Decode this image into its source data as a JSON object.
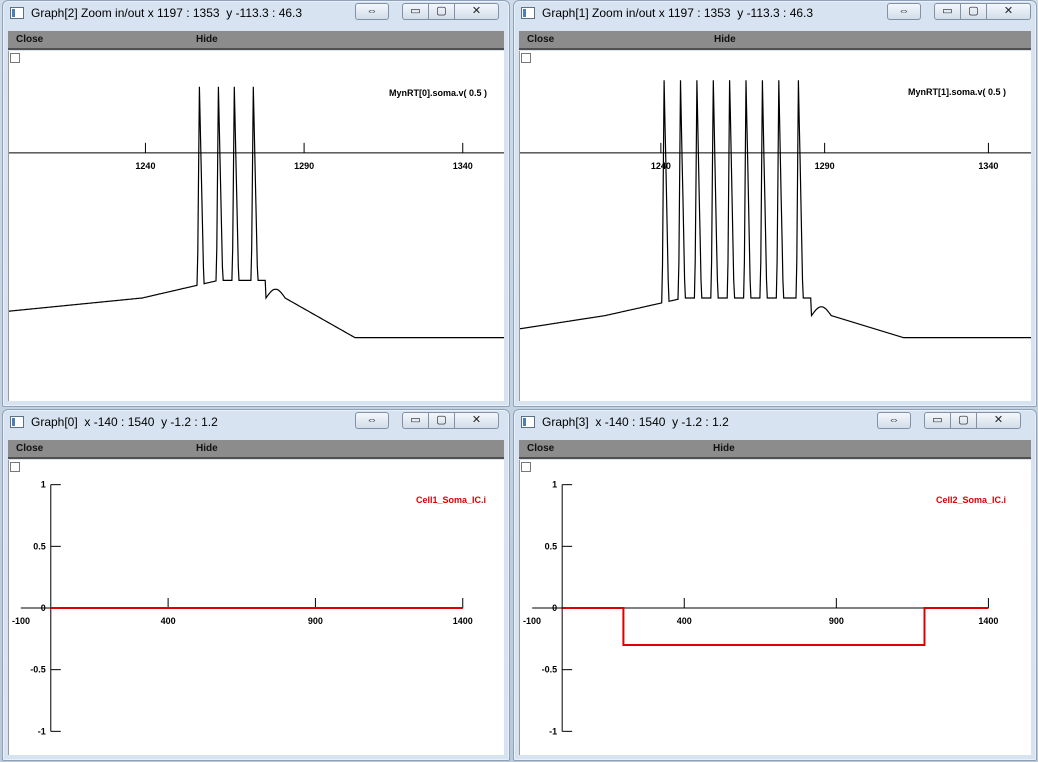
{
  "windows": [
    {
      "id": "graph2",
      "title": "Graph[2] Zoom in/out x 1197 : 1353  y -113.3 : 46.3",
      "menu": {
        "close": "Close",
        "hide": "Hide"
      },
      "buttons": {
        "arrows": "⇔",
        "min": "▭",
        "max": "▢",
        "close": "✕"
      }
    },
    {
      "id": "graph1",
      "title": "Graph[1] Zoom in/out x 1197 : 1353  y -113.3 : 46.3",
      "menu": {
        "close": "Close",
        "hide": "Hide"
      },
      "buttons": {
        "arrows": "⇔",
        "min": "▭",
        "max": "▢",
        "close": "✕"
      }
    },
    {
      "id": "graph0",
      "title": "Graph[0]  x -140 : 1540  y -1.2 : 1.2",
      "menu": {
        "close": "Close",
        "hide": "Hide"
      },
      "buttons": {
        "arrows": "⇔",
        "min": "▭",
        "max": "▢",
        "close": "✕"
      }
    },
    {
      "id": "graph3",
      "title": "Graph[3]  x -140 : 1540  y -1.2 : 1.2",
      "menu": {
        "close": "Close",
        "hide": "Hide"
      },
      "buttons": {
        "arrows": "⇔",
        "min": "▭",
        "max": "▢",
        "close": "✕"
      }
    }
  ],
  "chart_data": [
    {
      "type": "line",
      "window": "graph2",
      "series": [
        {
          "name": "MynRT[0].soma.v( 0.5 )",
          "color": "#000000"
        }
      ],
      "xlim": [
        1197,
        1353
      ],
      "ylim": [
        -113.3,
        46.3
      ],
      "x_ticks": [
        "1240",
        "1290",
        "1340"
      ],
      "x_tick_values": [
        1240,
        1290,
        1340
      ],
      "spike_times": [
        1257,
        1263,
        1268,
        1274
      ],
      "baseline_pre": -72,
      "baseline_post": -84,
      "spike_peak": 30
    },
    {
      "type": "line",
      "window": "graph1",
      "series": [
        {
          "name": "MynRT[1].soma.v( 0.5 )",
          "color": "#000000"
        }
      ],
      "xlim": [
        1197,
        1353
      ],
      "ylim": [
        -113.3,
        46.3
      ],
      "x_ticks": [
        "1240",
        "1290",
        "1340"
      ],
      "x_tick_values": [
        1240,
        1290,
        1340
      ],
      "spike_times": [
        1241,
        1246,
        1251,
        1256,
        1261,
        1266,
        1271,
        1276,
        1282
      ],
      "baseline_pre": -80,
      "baseline_post": -84,
      "spike_peak": 33
    },
    {
      "type": "line",
      "window": "graph0",
      "series": [
        {
          "name": "Cell1_Soma_IC.i",
          "color": "#dd0000"
        }
      ],
      "xlim": [
        -140,
        1540
      ],
      "ylim": [
        -1.2,
        1.2
      ],
      "x_ticks": [
        "-100",
        "400",
        "900",
        "1400"
      ],
      "x_tick_values": [
        -100,
        400,
        900,
        1400
      ],
      "y_ticks": [
        "1",
        "0.5",
        "0",
        "-0.5",
        "-1"
      ],
      "y_tick_values": [
        1,
        0.5,
        0,
        -0.5,
        -1
      ],
      "x": [
        0,
        1400
      ],
      "y": [
        0,
        0
      ]
    },
    {
      "type": "line",
      "window": "graph3",
      "series": [
        {
          "name": "Cell2_Soma_IC.i",
          "color": "#dd0000"
        }
      ],
      "xlim": [
        -140,
        1540
      ],
      "ylim": [
        -1.2,
        1.2
      ],
      "x_ticks": [
        "-100",
        "400",
        "900",
        "1400"
      ],
      "x_tick_values": [
        -100,
        400,
        900,
        1400
      ],
      "y_ticks": [
        "1",
        "0.5",
        "0",
        "-0.5",
        "-1"
      ],
      "y_tick_values": [
        1,
        0.5,
        0,
        -0.5,
        -1
      ],
      "x": [
        0,
        200,
        200,
        1190,
        1190,
        1400
      ],
      "y": [
        0,
        0,
        -0.3,
        -0.3,
        0,
        0
      ]
    }
  ]
}
